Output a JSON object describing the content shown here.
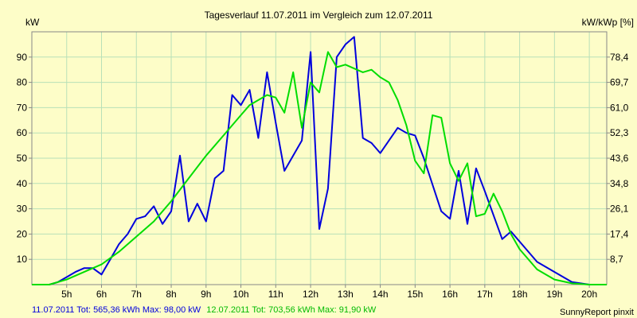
{
  "chart_data": {
    "type": "line",
    "title": "Tagesverlauf 11.07.2011 im Vergleich zum 12.07.2011",
    "ylabel_left": "kW",
    "ylabel_right": "kW/kWp [%]",
    "x_unit": "hour of day",
    "xlim": [
      4.0,
      20.5
    ],
    "ylim": [
      0,
      100
    ],
    "x_ticks": [
      5,
      6,
      7,
      8,
      9,
      10,
      11,
      12,
      13,
      14,
      15,
      16,
      17,
      18,
      19,
      20
    ],
    "x_tick_labels": [
      "5h",
      "6h",
      "7h",
      "8h",
      "9h",
      "10h",
      "11h",
      "12h",
      "13h",
      "14h",
      "15h",
      "16h",
      "17h",
      "18h",
      "19h",
      "20h"
    ],
    "y_left_ticks": [
      10,
      20,
      30,
      40,
      50,
      60,
      70,
      80,
      90
    ],
    "y_left_tick_labels": [
      "10",
      "20",
      "30",
      "40",
      "50",
      "60",
      "70",
      "80",
      "90"
    ],
    "y_right_ticks": [
      10,
      20,
      30,
      40,
      50,
      60,
      70,
      80,
      90
    ],
    "y_right_tick_labels": [
      "8,7",
      "17,4",
      "26,1",
      "34,8",
      "43,6",
      "52,3",
      "61,0",
      "69,7",
      "78,4"
    ],
    "grid": true,
    "series": [
      {
        "name": "11.07.2011",
        "legend": "11.07.2011 Tot: 565,36 kWh Max: 98,00 kW",
        "color": "#0000dd",
        "points": [
          [
            4.0,
            0
          ],
          [
            4.5,
            0
          ],
          [
            4.75,
            1
          ],
          [
            5.0,
            3
          ],
          [
            5.25,
            5
          ],
          [
            5.5,
            6.5
          ],
          [
            5.75,
            6.5
          ],
          [
            6.0,
            4
          ],
          [
            6.25,
            10
          ],
          [
            6.5,
            16
          ],
          [
            6.75,
            20
          ],
          [
            7.0,
            26
          ],
          [
            7.25,
            27
          ],
          [
            7.5,
            31
          ],
          [
            7.75,
            24
          ],
          [
            8.0,
            29
          ],
          [
            8.25,
            51
          ],
          [
            8.5,
            25
          ],
          [
            8.75,
            32
          ],
          [
            9.0,
            25
          ],
          [
            9.25,
            42
          ],
          [
            9.5,
            45
          ],
          [
            9.75,
            75
          ],
          [
            10.0,
            71
          ],
          [
            10.25,
            77
          ],
          [
            10.5,
            58
          ],
          [
            10.75,
            84
          ],
          [
            11.0,
            64
          ],
          [
            11.25,
            45
          ],
          [
            11.75,
            57
          ],
          [
            12.0,
            92
          ],
          [
            12.25,
            22
          ],
          [
            12.5,
            38
          ],
          [
            12.75,
            90
          ],
          [
            13.0,
            95
          ],
          [
            13.25,
            98
          ],
          [
            13.5,
            58
          ],
          [
            13.75,
            56
          ],
          [
            14.0,
            52
          ],
          [
            14.5,
            62
          ],
          [
            14.75,
            60
          ],
          [
            15.0,
            59
          ],
          [
            15.25,
            50
          ],
          [
            15.75,
            29
          ],
          [
            16.0,
            26
          ],
          [
            16.25,
            45
          ],
          [
            16.5,
            24
          ],
          [
            16.75,
            46
          ],
          [
            17.0,
            37
          ],
          [
            17.5,
            18
          ],
          [
            17.75,
            21
          ],
          [
            18.0,
            17
          ],
          [
            18.5,
            9
          ],
          [
            19.0,
            5
          ],
          [
            19.5,
            1
          ],
          [
            20.0,
            0
          ],
          [
            20.5,
            0
          ]
        ]
      },
      {
        "name": "12.07.2011",
        "legend": "12.07.2011 Tot: 703,56 kWh Max: 91,90 kW",
        "color": "#00dd00",
        "points": [
          [
            4.0,
            0
          ],
          [
            4.5,
            0
          ],
          [
            5.0,
            2
          ],
          [
            5.5,
            5
          ],
          [
            6.0,
            8
          ],
          [
            6.5,
            13
          ],
          [
            7.0,
            19
          ],
          [
            7.5,
            25
          ],
          [
            8.0,
            33
          ],
          [
            8.5,
            42
          ],
          [
            9.0,
            51
          ],
          [
            9.5,
            59
          ],
          [
            10.0,
            67
          ],
          [
            10.25,
            71
          ],
          [
            10.75,
            75
          ],
          [
            11.0,
            74
          ],
          [
            11.25,
            68
          ],
          [
            11.5,
            84
          ],
          [
            11.75,
            62
          ],
          [
            12.0,
            80
          ],
          [
            12.25,
            76
          ],
          [
            12.5,
            92
          ],
          [
            12.75,
            86
          ],
          [
            13.0,
            87
          ],
          [
            13.5,
            84
          ],
          [
            13.75,
            85
          ],
          [
            14.0,
            82
          ],
          [
            14.25,
            80
          ],
          [
            14.5,
            73
          ],
          [
            14.75,
            63
          ],
          [
            15.0,
            49
          ],
          [
            15.25,
            44
          ],
          [
            15.5,
            67
          ],
          [
            15.75,
            66
          ],
          [
            16.0,
            48
          ],
          [
            16.25,
            41
          ],
          [
            16.5,
            48
          ],
          [
            16.75,
            27
          ],
          [
            17.0,
            28
          ],
          [
            17.25,
            36
          ],
          [
            17.5,
            29
          ],
          [
            17.75,
            20
          ],
          [
            18.0,
            14
          ],
          [
            18.5,
            6
          ],
          [
            19.0,
            2
          ],
          [
            19.5,
            0.5
          ],
          [
            20.0,
            0
          ],
          [
            20.5,
            0
          ]
        ]
      }
    ],
    "footer_right": "SunnyReport pinxit"
  },
  "colors": {
    "background": "#fdfdc8",
    "grid": "#b8e0b8",
    "frame": "#888888"
  }
}
